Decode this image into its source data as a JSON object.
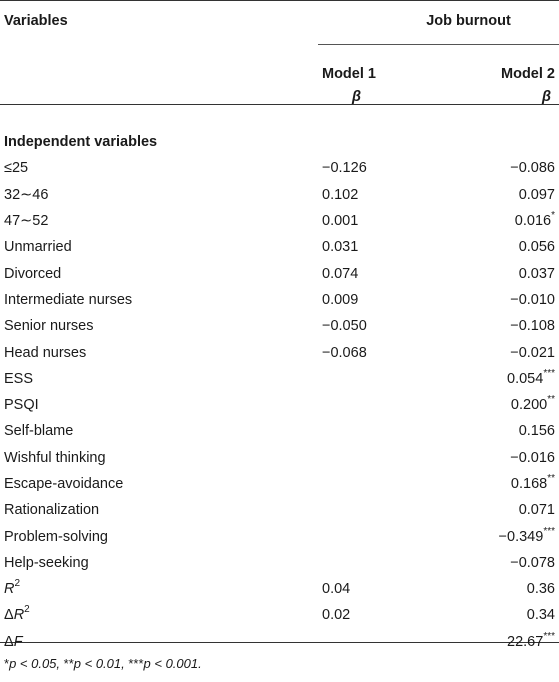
{
  "header": {
    "variables": "Variables",
    "job_burnout": "Job burnout",
    "model1": "Model 1",
    "model2": "Model 2",
    "beta1": "β",
    "beta2": "β"
  },
  "section": "Independent variables",
  "rows": [
    {
      "label": "≤25",
      "m1": "−0.126",
      "m2": "−0.086",
      "sig": ""
    },
    {
      "label": "32∼46",
      "m1": "0.102",
      "m2": "0.097",
      "sig": ""
    },
    {
      "label": "47∼52",
      "m1": "0.001",
      "m2": "0.016",
      "sig": "*"
    },
    {
      "label": "Unmarried",
      "m1": "0.031",
      "m2": "0.056",
      "sig": ""
    },
    {
      "label": "Divorced",
      "m1": "0.074",
      "m2": "0.037",
      "sig": ""
    },
    {
      "label": "Intermediate nurses",
      "m1": "0.009",
      "m2": "−0.010",
      "sig": ""
    },
    {
      "label": "Senior nurses",
      "m1": "−0.050",
      "m2": "−0.108",
      "sig": ""
    },
    {
      "label": "Head nurses",
      "m1": "−0.068",
      "m2": "−0.021",
      "sig": ""
    },
    {
      "label": "ESS",
      "m1": "",
      "m2": "0.054",
      "sig": "***"
    },
    {
      "label": "PSQI",
      "m1": "",
      "m2": "0.200",
      "sig": "**"
    },
    {
      "label": "Self-blame",
      "m1": "",
      "m2": "0.156",
      "sig": ""
    },
    {
      "label": "Wishful thinking",
      "m1": "",
      "m2": "−0.016",
      "sig": ""
    },
    {
      "label": "Escape-avoidance",
      "m1": "",
      "m2": "0.168",
      "sig": "**"
    },
    {
      "label": "Rationalization",
      "m1": "",
      "m2": "0.071",
      "sig": ""
    },
    {
      "label": "Problem-solving",
      "m1": "",
      "m2": "−0.349",
      "sig": "***"
    },
    {
      "label": "Help-seeking",
      "m1": "",
      "m2": "−0.078",
      "sig": ""
    }
  ],
  "stats": [
    {
      "label_pre": "",
      "label_it": "R",
      "label_sup": "2",
      "m1": "0.04",
      "m2": "0.36",
      "sig": ""
    },
    {
      "label_pre": "Δ",
      "label_it": "R",
      "label_sup": "2",
      "m1": "0.02",
      "m2": "0.34",
      "sig": ""
    },
    {
      "label_pre": "Δ",
      "label_it": "F",
      "label_sup": "",
      "m1": "",
      "m2": "22.67",
      "sig": "***"
    }
  ],
  "footnote": {
    "s1": "*",
    "p1": "p",
    "t1": " < 0.05, ",
    "s2": "**",
    "p2": "p",
    "t2": " < 0.01, ",
    "s3": "***",
    "p3": "p",
    "t3": " < 0.001."
  }
}
